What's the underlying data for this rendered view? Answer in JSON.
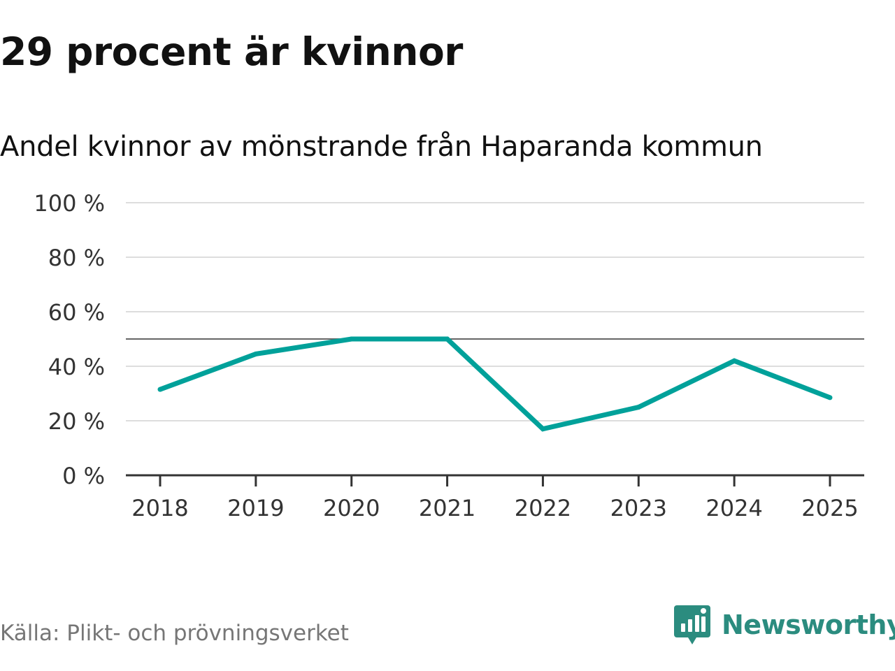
{
  "chart_data": {
    "type": "line",
    "title": "29 procent är kvinnor",
    "subtitle": "Andel kvinnor av mönstrande från Haparanda kommun",
    "x": [
      "2018",
      "2019",
      "2020",
      "2021",
      "2022",
      "2023",
      "2024",
      "2025"
    ],
    "series": [
      {
        "values": [
          31.5,
          44.5,
          50,
          50,
          17,
          25,
          42,
          28.5
        ]
      }
    ],
    "reference_line": 50,
    "ylim": [
      0,
      100
    ],
    "yticks": [
      0,
      20,
      40,
      60,
      80,
      100
    ],
    "ytick_labels": [
      "0 %",
      "20 %",
      "40 %",
      "60 %",
      "80 %",
      "100 %"
    ],
    "grid": true,
    "line_color": "#00a19a",
    "reference_color": "#666666"
  },
  "footer": {
    "source": "Källa: Plikt- och prövningsverket",
    "brand": "Newsworthy",
    "brand_color": "#2b8c7f",
    "brand_icon": "newsworthy-logo-icon"
  }
}
